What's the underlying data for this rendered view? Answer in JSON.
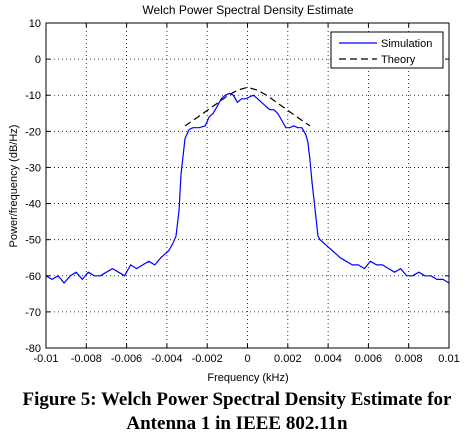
{
  "chart_data": {
    "type": "line",
    "title": "Welch Power Spectral Density Estimate",
    "xlabel": "Frequency (kHz)",
    "ylabel": "Power/frequency (dB/Hz)",
    "xlim": [
      -0.01,
      0.01
    ],
    "ylim": [
      -80,
      10
    ],
    "xticks": [
      -0.01,
      -0.008,
      -0.006,
      -0.004,
      -0.002,
      0,
      0.002,
      0.004,
      0.006,
      0.008,
      0.01
    ],
    "xtick_labels": [
      "-0.01",
      "-0.008",
      "-0.006",
      "-0.004",
      "-0.002",
      "0",
      "0.002",
      "0.004",
      "0.006",
      "0.008",
      "0.01"
    ],
    "yticks": [
      10,
      0,
      -10,
      -20,
      -30,
      -40,
      -50,
      -60,
      -70,
      -80
    ],
    "ytick_labels": [
      "10",
      "0",
      "-10",
      "-20",
      "-30",
      "-40",
      "-50",
      "-60",
      "-70",
      "-80"
    ],
    "grid": true,
    "legend_position": "top-right",
    "series": [
      {
        "name": "Simulation",
        "color": "#0000ff",
        "style": "solid",
        "x": [
          -0.01,
          -0.0097,
          -0.0094,
          -0.0091,
          -0.0088,
          -0.0085,
          -0.0082,
          -0.0079,
          -0.0076,
          -0.0073,
          -0.007,
          -0.0067,
          -0.0064,
          -0.0061,
          -0.0058,
          -0.0055,
          -0.0052,
          -0.0049,
          -0.0046,
          -0.0043,
          -0.0041,
          -0.0039,
          -0.0037,
          -0.00355,
          -0.0034,
          -0.0033,
          -0.0031,
          -0.0029,
          -0.0027,
          -0.0024,
          -0.0021,
          -0.0019,
          -0.0017,
          -0.0015,
          -0.0013,
          -0.0011,
          -0.0009,
          -0.0007,
          -0.0005,
          -0.0003,
          -0.0001,
          0.0001,
          0.0003,
          0.0005,
          0.0007,
          0.0009,
          0.0011,
          0.0013,
          0.0015,
          0.0017,
          0.0019,
          0.0021,
          0.0023,
          0.0025,
          0.0027,
          0.0029,
          0.003,
          0.0031,
          0.0032,
          0.0034,
          0.0035,
          0.0036,
          0.0038,
          0.004,
          0.0042,
          0.0044,
          0.0046,
          0.0049,
          0.0052,
          0.0055,
          0.0058,
          0.0061,
          0.0064,
          0.0067,
          0.007,
          0.0073,
          0.0076,
          0.0079,
          0.0082,
          0.0085,
          0.0088,
          0.0091,
          0.0094,
          0.0097,
          0.01
        ],
        "y": [
          -60,
          -61,
          -60,
          -62,
          -60,
          -59,
          -61,
          -59,
          -60,
          -60,
          -59,
          -58,
          -59,
          -60,
          -57,
          -58,
          -57,
          -56,
          -57,
          -55,
          -54,
          -53,
          -51,
          -49,
          -42,
          -32,
          -22,
          -19.5,
          -19,
          -19,
          -18.5,
          -16,
          -15,
          -13,
          -11,
          -10,
          -9.5,
          -10,
          -12,
          -11,
          -11,
          -10.5,
          -10,
          -11,
          -12,
          -13,
          -14,
          -14,
          -15,
          -17,
          -19,
          -19,
          -18.5,
          -19,
          -19,
          -21,
          -23,
          -28,
          -34,
          -44,
          -49,
          -50,
          -51,
          -52,
          -53,
          -54,
          -55,
          -56,
          -57,
          -57,
          -58,
          -56,
          -57,
          -57,
          -58,
          -59,
          -58,
          -60,
          -60,
          -59,
          -60,
          -60,
          -61,
          -61,
          -62
        ]
      },
      {
        "name": "Theory",
        "color": "#000000",
        "style": "dashed",
        "x": [
          -0.0031,
          -0.0025,
          -0.002,
          -0.0015,
          -0.001,
          -0.0005,
          0,
          0.0005,
          0.001,
          0.0015,
          0.002,
          0.0025,
          0.0031
        ],
        "y": [
          -18.5,
          -16.2,
          -14.2,
          -12.2,
          -10.2,
          -8.6,
          -7.8,
          -8.6,
          -10.2,
          -12.2,
          -14.2,
          -16.2,
          -18.5
        ]
      }
    ]
  },
  "caption": {
    "line1": "Figure 5: Welch Power Spectral Density Estimate for",
    "line2": "Antenna 1 in IEEE 802.11n"
  }
}
